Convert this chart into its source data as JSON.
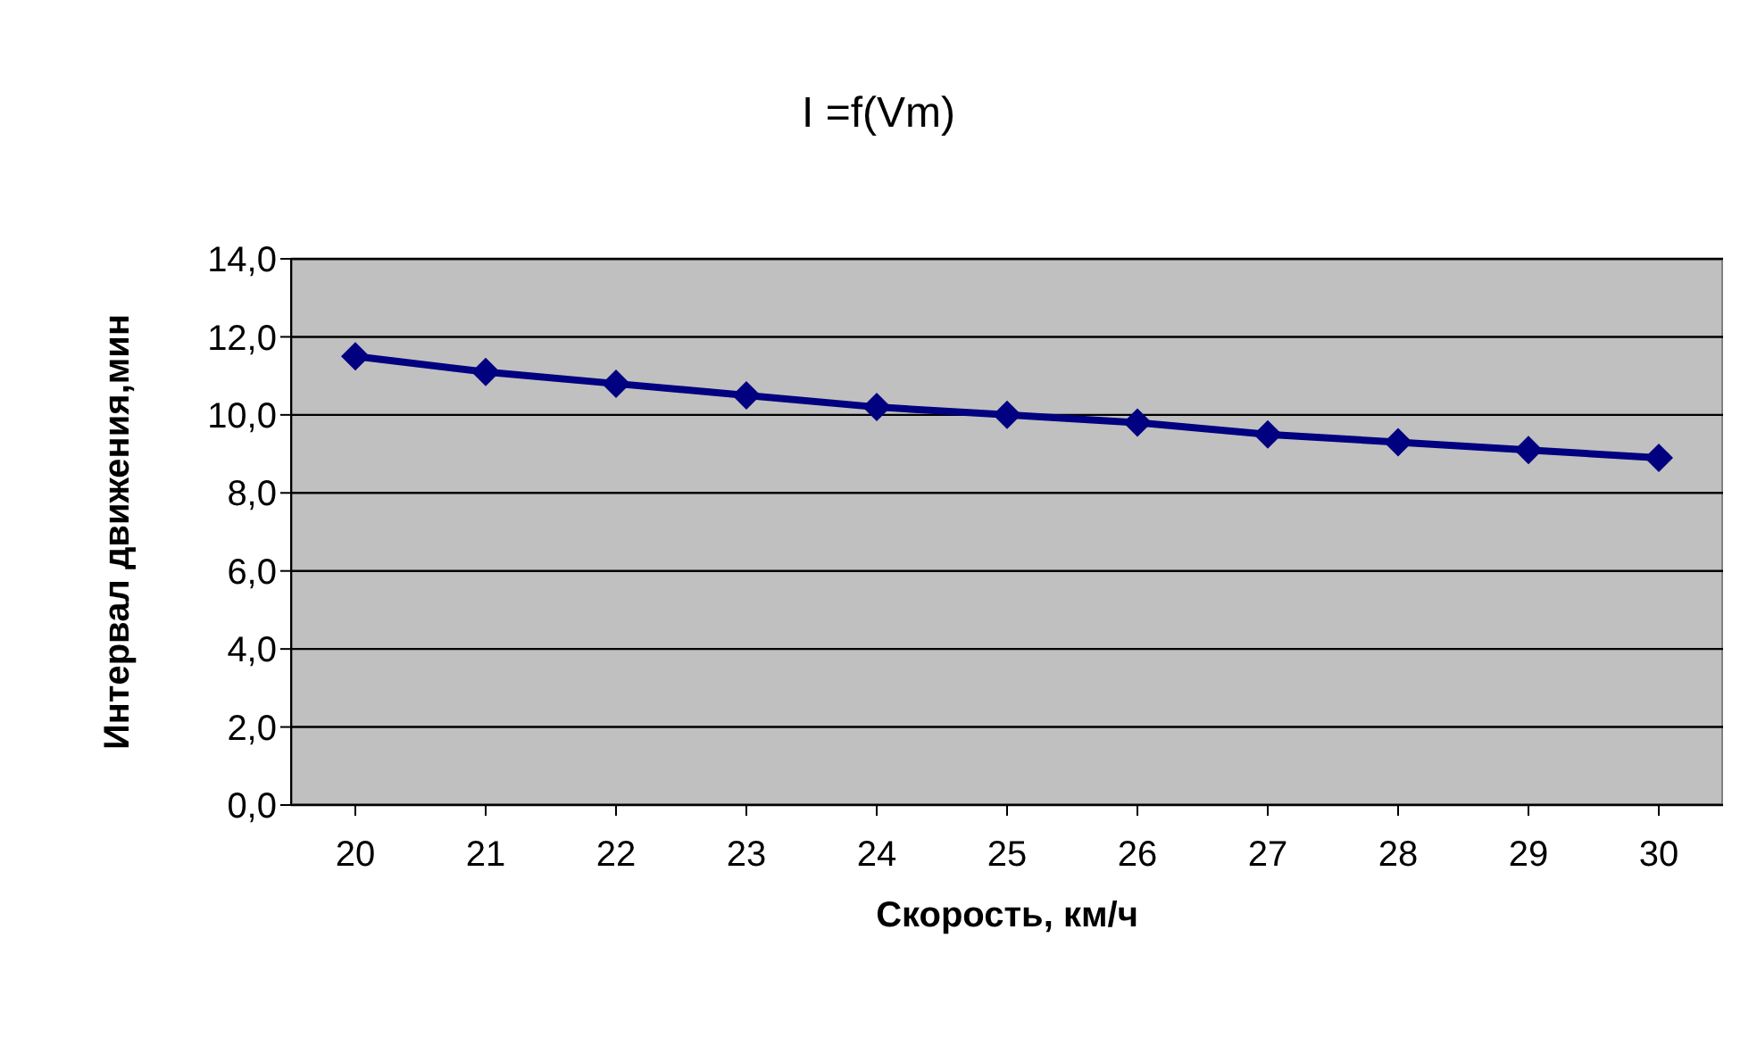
{
  "chart_data": {
    "type": "line",
    "title": "I =f(Vm)",
    "xlabel": "Скорость, км/ч",
    "ylabel": "Интервал движения,мин",
    "categories": [
      "20",
      "21",
      "22",
      "23",
      "24",
      "25",
      "26",
      "27",
      "28",
      "29",
      "30"
    ],
    "series": [
      {
        "color": "#000080",
        "values": [
          11.5,
          11.1,
          10.8,
          10.5,
          10.2,
          10.0,
          9.8,
          9.5,
          9.3,
          9.1,
          8.9
        ]
      }
    ],
    "ylim": [
      0,
      14
    ],
    "yticks": [
      {
        "value": 0,
        "label": "0,0"
      },
      {
        "value": 2,
        "label": "2,0"
      },
      {
        "value": 4,
        "label": "4,0"
      },
      {
        "value": 6,
        "label": "6,0"
      },
      {
        "value": 8,
        "label": "8,0"
      },
      {
        "value": 10,
        "label": "10,0"
      },
      {
        "value": 12,
        "label": "12,0"
      },
      {
        "value": 14,
        "label": "14,0"
      }
    ],
    "grid": "y",
    "marker": "diamond",
    "line_style": "solid"
  }
}
